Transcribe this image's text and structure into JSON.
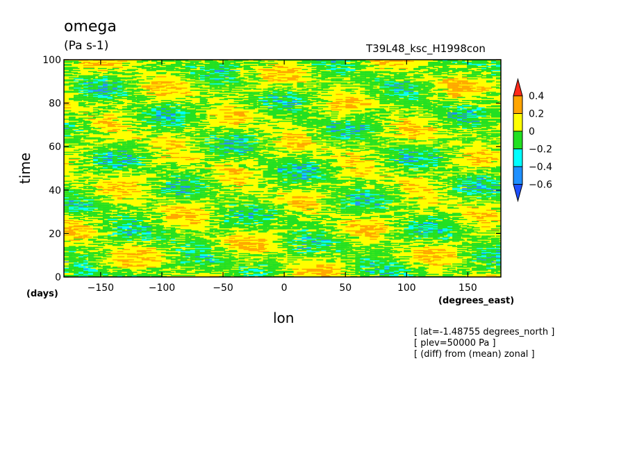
{
  "chart_data": {
    "type": "heatmap",
    "title": "omega",
    "units": "(Pa s-1)",
    "model": "T39L48_ksc_H1998con",
    "xlabel": "lon",
    "ylabel": "time",
    "x_unit": "(degrees_east)",
    "y_unit": "(days)",
    "xlim": [
      -180,
      177
    ],
    "ylim": [
      0,
      100
    ],
    "xticks": [
      -150,
      -100,
      -50,
      0,
      50,
      100,
      150
    ],
    "yticks": [
      0,
      20,
      40,
      60,
      80,
      100
    ],
    "colorbar": {
      "levels": [
        "0.4",
        "0.2",
        "0",
        "-0.2",
        "-0.4",
        "-0.6"
      ],
      "bins": [
        {
          "range": "> 0.4",
          "color": "#ff2a1a"
        },
        {
          "range": "0.2 to 0.4",
          "color": "#ffa500"
        },
        {
          "range": "0 to 0.2",
          "color": "#ffff00"
        },
        {
          "range": "-0.2 to 0",
          "color": "#22e022"
        },
        {
          "range": "-0.4 to -0.2",
          "color": "#00ffff"
        },
        {
          "range": "-0.6 to -0.4",
          "color": "#1e90ff"
        },
        {
          "range": "< -0.6",
          "color": "#1e50ff"
        }
      ]
    },
    "annotations": [
      "[ lat=-1.48755 degrees_north ]",
      "[ plev=50000 Pa ]",
      "[ (diff) from (mean) zonal ]"
    ]
  }
}
